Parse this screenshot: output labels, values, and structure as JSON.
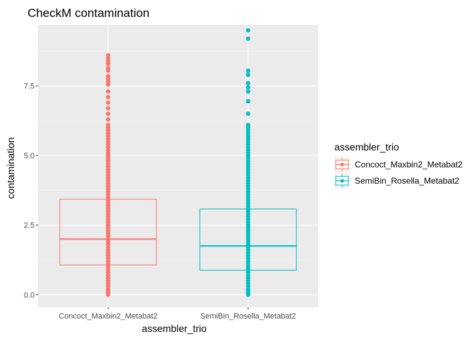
{
  "chart_data": {
    "type": "box",
    "title": "CheckM contamination",
    "xlabel": "assembler_trio",
    "ylabel": "contamination",
    "ylim": [
      -0.45,
      9.7
    ],
    "yticks": [
      0.0,
      2.5,
      5.0,
      7.5
    ],
    "ytick_labels": [
      "0.0",
      "2.5",
      "5.0",
      "7.5"
    ],
    "categories": [
      "Concoct_Maxbin2_Metabat2",
      "SemiBin_Rosella_Metabat2"
    ],
    "grid": true,
    "legend": {
      "title": "assembler_trio",
      "placement": "right",
      "entries": [
        "Concoct_Maxbin2_Metabat2",
        "SemiBin_Rosella_Metabat2"
      ]
    },
    "colors": [
      "#F8766D",
      "#00BFC4"
    ],
    "panel_background": "#EBEBEB",
    "series": [
      {
        "name": "Concoct_Maxbin2_Metabat2",
        "box": {
          "q1": 1.07,
          "median": 2.0,
          "q3": 3.43
        },
        "points": [
          0.0,
          0.05,
          0.1,
          0.15,
          0.2,
          0.3,
          0.4,
          0.5,
          0.6,
          0.7,
          0.8,
          0.9,
          1.0,
          1.1,
          1.2,
          1.3,
          1.4,
          1.5,
          1.6,
          1.7,
          1.8,
          1.9,
          2.0,
          2.1,
          2.2,
          2.3,
          2.4,
          2.5,
          2.6,
          2.7,
          2.8,
          2.9,
          3.0,
          3.1,
          3.2,
          3.3,
          3.4,
          3.5,
          3.6,
          3.7,
          3.8,
          3.9,
          4.0,
          4.1,
          4.2,
          4.3,
          4.4,
          4.5,
          4.6,
          4.7,
          4.8,
          4.9,
          5.0,
          5.1,
          5.2,
          5.3,
          5.4,
          5.5,
          5.6,
          5.7,
          5.8,
          5.9,
          6.0,
          6.1,
          6.3,
          6.5,
          6.7,
          6.9,
          7.1,
          7.3,
          7.55,
          7.65,
          7.75,
          7.85,
          8.05,
          8.15,
          8.3,
          8.4,
          8.5,
          8.6
        ]
      },
      {
        "name": "SemiBin_Rosella_Metabat2",
        "box": {
          "q1": 0.88,
          "median": 1.75,
          "q3": 3.08
        },
        "points": [
          0.0,
          0.05,
          0.1,
          0.15,
          0.2,
          0.3,
          0.4,
          0.5,
          0.6,
          0.7,
          0.8,
          0.9,
          1.0,
          1.1,
          1.2,
          1.3,
          1.4,
          1.5,
          1.6,
          1.7,
          1.8,
          1.9,
          2.0,
          2.1,
          2.2,
          2.3,
          2.4,
          2.5,
          2.6,
          2.7,
          2.8,
          2.9,
          3.0,
          3.1,
          3.2,
          3.3,
          3.4,
          3.5,
          3.6,
          3.7,
          3.8,
          3.9,
          4.0,
          4.1,
          4.2,
          4.3,
          4.4,
          4.5,
          4.6,
          4.7,
          4.8,
          4.9,
          5.0,
          5.1,
          5.2,
          5.3,
          5.4,
          5.5,
          5.6,
          5.7,
          5.8,
          5.9,
          6.0,
          6.1,
          6.5,
          6.95,
          7.3,
          7.45,
          7.6,
          7.9,
          8.05,
          9.2,
          9.5
        ]
      }
    ]
  }
}
